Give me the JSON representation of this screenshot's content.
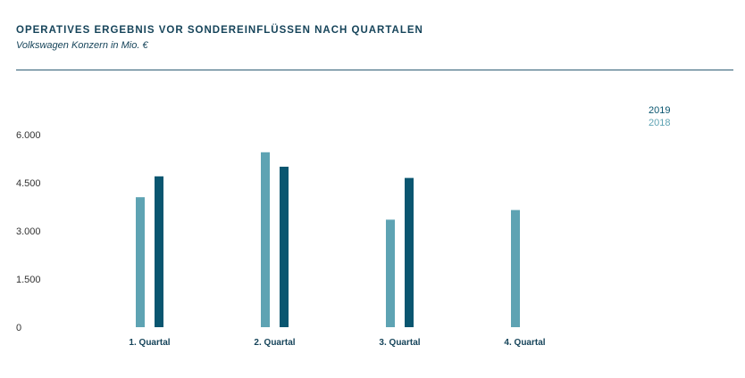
{
  "colors": {
    "title": "#16445a",
    "rule": "#2e5d74",
    "series_2019": "#0a5670",
    "series_2018": "#5ea3b3"
  },
  "chart_data": {
    "type": "bar",
    "title": "OPERATIVES ERGEBNIS VOR SONDEREINFLÜSSEN NACH QUARTALEN",
    "subtitle": "Volkswagen Konzern in Mio. €",
    "categories": [
      "1. Quartal",
      "2. Quartal",
      "3. Quartal",
      "4. Quartal"
    ],
    "yticks": [
      {
        "value": 0,
        "label": "0"
      },
      {
        "value": 1500,
        "label": "1.500"
      },
      {
        "value": 3000,
        "label": "3.000"
      },
      {
        "value": 4500,
        "label": "4.500"
      },
      {
        "value": 6000,
        "label": "6.000"
      }
    ],
    "ylim": [
      0,
      6000
    ],
    "grid": false,
    "legend_position": "top-right",
    "series": [
      {
        "name": "2018",
        "color": "#5ea3b3",
        "values": [
          4050,
          5450,
          3350,
          3650
        ]
      },
      {
        "name": "2019",
        "color": "#0a5670",
        "values": [
          4700,
          5000,
          4650,
          null
        ]
      }
    ],
    "legend_order": [
      "2019",
      "2018"
    ]
  }
}
